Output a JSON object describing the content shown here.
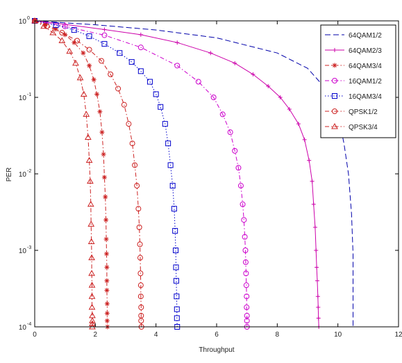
{
  "chart_data": {
    "type": "line",
    "title": "",
    "xlabel": "Throughput",
    "ylabel": "PER",
    "xlim": [
      0,
      12
    ],
    "ylim": [
      0.0001,
      1
    ],
    "yscale": "log",
    "x_ticks": [
      0,
      2,
      4,
      6,
      8,
      10,
      12
    ],
    "x_tick_labels": [
      "0",
      "2",
      "4",
      "6",
      "8",
      "10",
      "12"
    ],
    "y_ticks": [
      0.0001,
      0.001,
      0.01,
      0.1,
      1
    ],
    "y_tick_labels": [
      "10",
      "10",
      "10",
      "10",
      "10"
    ],
    "y_tick_exponents": [
      "-4",
      "-3",
      "-2",
      "-1",
      "0"
    ],
    "grid": false,
    "legend_position": "top-right",
    "series": [
      {
        "name": "64QAM1/2",
        "color": "#0000aa",
        "dash": "dashed",
        "marker": "none",
        "x": [
          0,
          2,
          4,
          6,
          8,
          9,
          9.6,
          10.0,
          10.2,
          10.35,
          10.45,
          10.5,
          10.5
        ],
        "y": [
          1,
          0.89,
          0.76,
          0.6,
          0.38,
          0.24,
          0.13,
          0.06,
          0.025,
          0.01,
          0.003,
          0.0009,
          0.0001
        ]
      },
      {
        "name": "64QAM2/3",
        "color": "#cc00aa",
        "dash": "solid",
        "marker": "plus",
        "x": [
          0,
          1,
          2.3,
          3.5,
          4.7,
          5.8,
          6.6,
          7.2,
          7.7,
          8.1,
          8.4,
          8.7,
          8.9,
          9.05,
          9.15,
          9.2,
          9.25,
          9.28,
          9.3,
          9.32,
          9.34,
          9.35,
          9.36,
          9.37
        ],
        "y": [
          1,
          0.9,
          0.77,
          0.66,
          0.52,
          0.38,
          0.28,
          0.2,
          0.14,
          0.1,
          0.07,
          0.045,
          0.028,
          0.015,
          0.008,
          0.004,
          0.002,
          0.001,
          0.0006,
          0.0004,
          0.00025,
          0.00018,
          0.00013,
          0.0001
        ]
      },
      {
        "name": "64QAM3/4",
        "color": "#cc2222",
        "dash": "dashdot",
        "marker": "star",
        "x": [
          0,
          0.35,
          0.7,
          1.0,
          1.3,
          1.6,
          1.8,
          1.95,
          2.05,
          2.15,
          2.22,
          2.27,
          2.3,
          2.33,
          2.35,
          2.36,
          2.37,
          2.38,
          2.38,
          2.38,
          2.39,
          2.39,
          2.39,
          2.4
        ],
        "y": [
          1,
          0.9,
          0.78,
          0.66,
          0.52,
          0.38,
          0.26,
          0.17,
          0.11,
          0.065,
          0.035,
          0.018,
          0.009,
          0.005,
          0.0025,
          0.0014,
          0.0009,
          0.0006,
          0.0004,
          0.0003,
          0.0002,
          0.00015,
          0.00012,
          0.0001
        ]
      },
      {
        "name": "16QAM1/2",
        "color": "#cc00cc",
        "dash": "dashdot",
        "marker": "circle",
        "x": [
          0,
          1,
          2.3,
          3.5,
          4.7,
          5.4,
          5.9,
          6.2,
          6.45,
          6.6,
          6.72,
          6.8,
          6.86,
          6.9,
          6.93,
          6.95,
          6.96,
          6.97,
          6.98,
          6.99,
          6.99,
          7.0,
          7.0,
          7.0
        ],
        "y": [
          1,
          0.85,
          0.65,
          0.45,
          0.26,
          0.16,
          0.1,
          0.06,
          0.035,
          0.02,
          0.012,
          0.007,
          0.004,
          0.0025,
          0.0015,
          0.001,
          0.0007,
          0.0005,
          0.00035,
          0.00025,
          0.00018,
          0.00014,
          0.00012,
          0.0001
        ]
      },
      {
        "name": "16QAM3/4",
        "color": "#0000cc",
        "dash": "dotted",
        "marker": "square",
        "x": [
          0,
          0.7,
          1.3,
          1.8,
          2.3,
          2.8,
          3.2,
          3.5,
          3.8,
          4.0,
          4.15,
          4.3,
          4.4,
          4.48,
          4.55,
          4.6,
          4.63,
          4.65,
          4.66,
          4.67,
          4.68,
          4.69,
          4.69,
          4.7
        ],
        "y": [
          1,
          0.88,
          0.76,
          0.63,
          0.5,
          0.38,
          0.29,
          0.22,
          0.16,
          0.11,
          0.075,
          0.045,
          0.025,
          0.013,
          0.007,
          0.0035,
          0.0018,
          0.001,
          0.0006,
          0.0004,
          0.00025,
          0.00017,
          0.00013,
          0.0001
        ]
      },
      {
        "name": "QPSK1/2",
        "color": "#cc2222",
        "dash": "dashdot",
        "marker": "circle",
        "x": [
          0,
          0.4,
          0.9,
          1.4,
          1.8,
          2.2,
          2.5,
          2.75,
          2.95,
          3.1,
          3.22,
          3.3,
          3.37,
          3.42,
          3.45,
          3.47,
          3.48,
          3.49,
          3.5,
          3.5,
          3.51,
          3.51,
          3.51,
          3.52
        ],
        "y": [
          1,
          0.85,
          0.7,
          0.55,
          0.42,
          0.3,
          0.2,
          0.13,
          0.08,
          0.045,
          0.025,
          0.013,
          0.007,
          0.0035,
          0.002,
          0.0012,
          0.0008,
          0.0005,
          0.00035,
          0.00025,
          0.00018,
          0.00014,
          0.00012,
          0.0001
        ]
      },
      {
        "name": "QPSK3/4",
        "color": "#cc2222",
        "dash": "dashdot",
        "marker": "triangle",
        "x": [
          0,
          0.3,
          0.6,
          0.9,
          1.15,
          1.35,
          1.5,
          1.62,
          1.7,
          1.76,
          1.8,
          1.83,
          1.85,
          1.86,
          1.87,
          1.88,
          1.88,
          1.89,
          1.89,
          1.89,
          1.9,
          1.9,
          1.9,
          1.9
        ],
        "y": [
          1,
          0.85,
          0.7,
          0.55,
          0.4,
          0.28,
          0.18,
          0.11,
          0.06,
          0.03,
          0.015,
          0.008,
          0.004,
          0.0022,
          0.0013,
          0.0008,
          0.0005,
          0.00035,
          0.00025,
          0.00018,
          0.00014,
          0.00012,
          0.00011,
          0.0001
        ]
      }
    ]
  }
}
